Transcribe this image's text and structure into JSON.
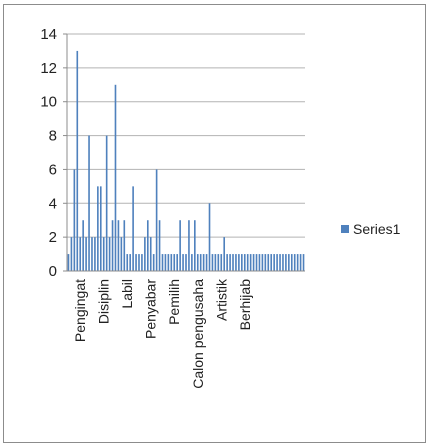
{
  "chart_data": {
    "type": "bar",
    "title": "",
    "xlabel": "",
    "ylabel": "",
    "ylim": [
      0,
      14
    ],
    "yticks": [
      0,
      2,
      4,
      6,
      8,
      10,
      12,
      14
    ],
    "grid": true,
    "legend_position": "right",
    "tick_labels": [
      "Pengingat",
      "Disiplin",
      "Labil",
      "Penyabar",
      "Pemilih",
      "Calon pengusaha",
      "Artistik",
      "Berhijab"
    ],
    "tick_label_index": [
      4,
      12,
      20,
      28,
      36,
      44,
      52,
      60
    ],
    "series": [
      {
        "name": "Series1",
        "color": "#4f81bd",
        "values": [
          1,
          2,
          6,
          13,
          2,
          3,
          2,
          8,
          2,
          2,
          5,
          5,
          2,
          8,
          2,
          3,
          11,
          3,
          2,
          3,
          1,
          1,
          5,
          1,
          1,
          1,
          2,
          3,
          2,
          1,
          6,
          3,
          1,
          1,
          1,
          1,
          1,
          1,
          3,
          1,
          1,
          3,
          1,
          3,
          1,
          1,
          1,
          1,
          4,
          1,
          1,
          1,
          1,
          2,
          1,
          1,
          1,
          1,
          1,
          1,
          1,
          1,
          1,
          1,
          1,
          1,
          1,
          1,
          1,
          1,
          1,
          1,
          1,
          1,
          1,
          1,
          1,
          1,
          1,
          1,
          1
        ]
      }
    ]
  }
}
